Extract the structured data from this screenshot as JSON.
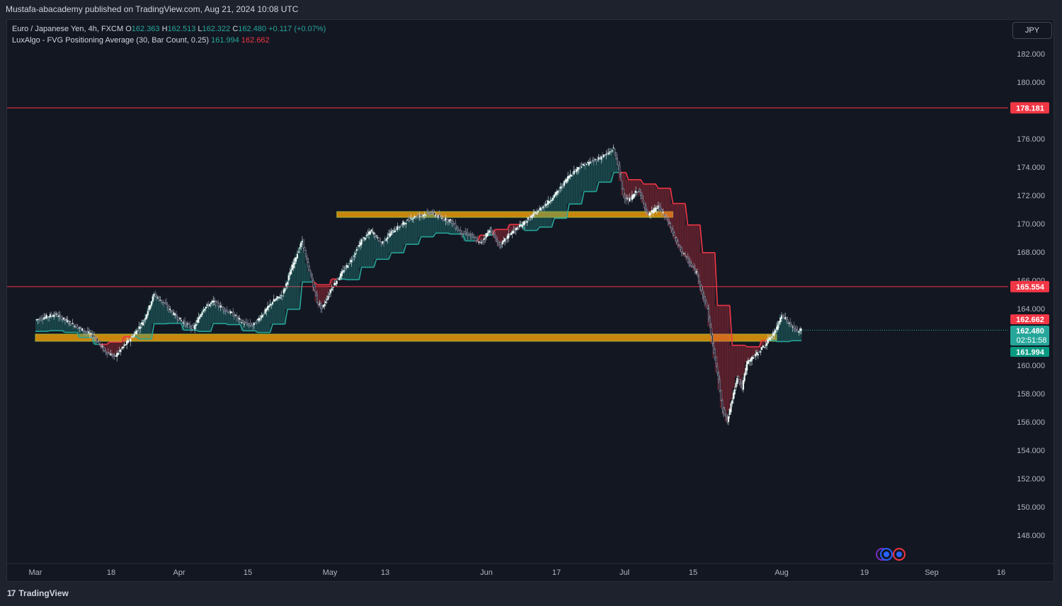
{
  "header": {
    "publish_line": "Mustafa-abacademy published on TradingView.com, Aug 21, 2024 10:08 UTC"
  },
  "legend": {
    "symbol": "Euro / Japanese Yen, 4h, FXCM",
    "o_label": "O",
    "o_value": "162.363",
    "h_label": "H",
    "h_value": "162.513",
    "l_label": "L",
    "l_value": "162.322",
    "c_label": "C",
    "c_value": "162.480",
    "change": "+0.117 (+0.07%)",
    "indicator": "LuxAlgo - FVG Positioning Average (30, Bar Count, 0.25)",
    "ind_value_1": "161.994",
    "ind_value_2": "162.662"
  },
  "currency_button": "JPY",
  "footer": {
    "brand": "TradingView",
    "brand_mark": "17"
  },
  "colors": {
    "background": "#131722",
    "up": "#26a69a",
    "down": "#f23645",
    "zone": "#c8860d",
    "zone_border": "#a6b536",
    "grid_text": "#b2b5be"
  },
  "chart_data": {
    "type": "candlestick",
    "symbol": "EURJPY",
    "timeframe": "4h",
    "ylim": [
      146.0,
      184.0
    ],
    "y_ticks": [
      "182.000",
      "180.000",
      "176.000",
      "174.000",
      "172.000",
      "170.000",
      "168.000",
      "166.000",
      "164.000",
      "160.000",
      "158.000",
      "156.000",
      "154.000",
      "152.000",
      "150.000",
      "148.000"
    ],
    "x_ticks": [
      "Mar",
      "18",
      "Apr",
      "15",
      "May",
      "13",
      "Jun",
      "17",
      "Jul",
      "15",
      "Aug",
      "19",
      "Sep",
      "16"
    ],
    "price_path": [
      [
        0,
        163.2
      ],
      [
        4,
        163.6
      ],
      [
        8,
        162.8
      ],
      [
        12,
        162.0
      ],
      [
        14,
        161.0
      ],
      [
        16,
        160.6
      ],
      [
        18,
        161.4
      ],
      [
        20,
        162.2
      ],
      [
        22,
        163.2
      ],
      [
        24,
        165.0
      ],
      [
        26,
        164.4
      ],
      [
        28,
        163.6
      ],
      [
        30,
        163.0
      ],
      [
        32,
        162.6
      ],
      [
        34,
        164.0
      ],
      [
        36,
        164.5
      ],
      [
        38,
        164.0
      ],
      [
        40,
        163.6
      ],
      [
        42,
        163.0
      ],
      [
        44,
        162.8
      ],
      [
        46,
        163.6
      ],
      [
        48,
        164.5
      ],
      [
        50,
        165.0
      ],
      [
        52,
        167.0
      ],
      [
        54,
        168.8
      ],
      [
        55,
        167.2
      ],
      [
        56,
        166.0
      ],
      [
        57,
        164.5
      ],
      [
        58,
        164.0
      ],
      [
        60,
        165.5
      ],
      [
        62,
        166.5
      ],
      [
        64,
        167.5
      ],
      [
        66,
        168.8
      ],
      [
        68,
        169.5
      ],
      [
        70,
        168.6
      ],
      [
        72,
        169.4
      ],
      [
        74,
        169.9
      ],
      [
        76,
        170.4
      ],
      [
        78,
        170.6
      ],
      [
        80,
        170.8
      ],
      [
        82,
        170.4
      ],
      [
        84,
        170.2
      ],
      [
        86,
        169.4
      ],
      [
        88,
        169.2
      ],
      [
        90,
        168.6
      ],
      [
        92,
        169.6
      ],
      [
        94,
        168.4
      ],
      [
        96,
        169.3
      ],
      [
        98,
        169.8
      ],
      [
        100,
        170.4
      ],
      [
        102,
        171.0
      ],
      [
        104,
        171.6
      ],
      [
        106,
        172.4
      ],
      [
        108,
        173.4
      ],
      [
        110,
        174.0
      ],
      [
        112,
        174.3
      ],
      [
        114,
        174.6
      ],
      [
        116,
        175.0
      ],
      [
        117,
        175.3
      ],
      [
        118,
        174.0
      ],
      [
        119,
        172.0
      ],
      [
        120,
        171.6
      ],
      [
        122,
        172.4
      ],
      [
        124,
        170.6
      ],
      [
        126,
        171.2
      ],
      [
        128,
        170.2
      ],
      [
        130,
        168.5
      ],
      [
        132,
        167.4
      ],
      [
        134,
        166.4
      ],
      [
        135,
        165.0
      ],
      [
        136,
        164.0
      ],
      [
        137,
        161.5
      ],
      [
        138,
        159.5
      ],
      [
        139,
        157.0
      ],
      [
        140,
        156.0
      ],
      [
        141,
        157.6
      ],
      [
        142,
        159.2
      ],
      [
        143,
        158.4
      ],
      [
        144,
        160.2
      ],
      [
        146,
        160.8
      ],
      [
        148,
        161.6
      ],
      [
        150,
        162.6
      ],
      [
        151,
        163.6
      ],
      [
        152,
        163.2
      ],
      [
        154,
        162.4
      ],
      [
        155,
        162.48
      ]
    ],
    "horizontal_lines": [
      {
        "price": 178.181,
        "label": "178.181",
        "color": "#f23645"
      },
      {
        "price": 165.554,
        "label": "165.554",
        "color": "#f23645"
      }
    ],
    "zones": [
      {
        "from": 170.45,
        "to": 170.85,
        "start_day": 61,
        "end_day": 129
      },
      {
        "from": 161.7,
        "to": 162.2,
        "start_day": 0,
        "end_day": 150
      }
    ],
    "price_labels": [
      {
        "label": "162.662",
        "color": "#f23645"
      },
      {
        "label": "162.480",
        "sublabel": "02:51:58",
        "color": "#26a69a"
      },
      {
        "label": "161.994",
        "color": "#089981"
      }
    ],
    "current_price": 162.48
  }
}
